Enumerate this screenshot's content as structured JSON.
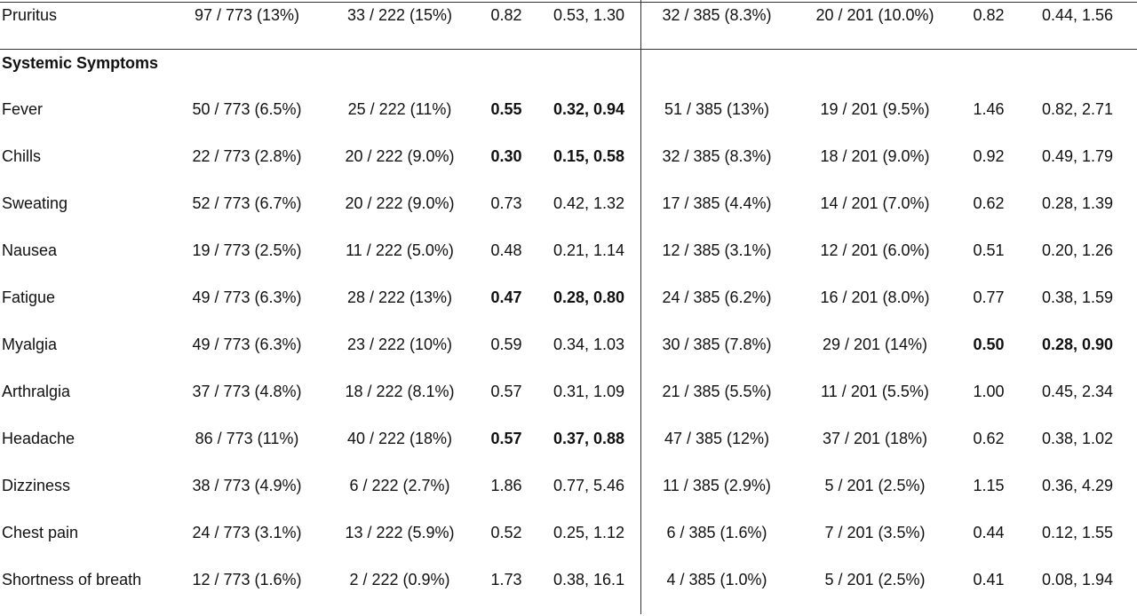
{
  "table": {
    "rows": [
      {
        "cells": [
          "Pruritus",
          "97 / 773 (13%)",
          "33 / 222 (15%)",
          "0.82",
          "0.53, 1.30",
          "32 / 385 (8.3%)",
          "20 / 201 (10.0%)",
          "0.82",
          "0.44, 1.56"
        ]
      },
      {
        "section": "Systemic Symptoms"
      },
      {
        "cells": [
          "Fever",
          "50 / 773 (6.5%)",
          "25 / 222 (11%)",
          "0.55",
          "0.32, 0.94",
          "51 / 385 (13%)",
          "19 / 201 (9.5%)",
          "1.46",
          "0.82, 2.71"
        ],
        "bold": [
          3,
          4
        ]
      },
      {
        "cells": [
          "Chills",
          "22 / 773 (2.8%)",
          "20 / 222 (9.0%)",
          "0.30",
          "0.15, 0.58",
          "32 / 385 (8.3%)",
          "18 / 201 (9.0%)",
          "0.92",
          "0.49, 1.79"
        ],
        "bold": [
          3,
          4
        ]
      },
      {
        "cells": [
          "Sweating",
          "52 / 773 (6.7%)",
          "20 / 222 (9.0%)",
          "0.73",
          "0.42, 1.32",
          "17 / 385 (4.4%)",
          "14 / 201 (7.0%)",
          "0.62",
          "0.28, 1.39"
        ]
      },
      {
        "cells": [
          "Nausea",
          "19 / 773 (2.5%)",
          "11 / 222 (5.0%)",
          "0.48",
          "0.21, 1.14",
          "12 / 385 (3.1%)",
          "12 / 201 (6.0%)",
          "0.51",
          "0.20, 1.26"
        ]
      },
      {
        "cells": [
          "Fatigue",
          "49 / 773 (6.3%)",
          "28 / 222 (13%)",
          "0.47",
          "0.28, 0.80",
          "24 / 385 (6.2%)",
          "16 / 201 (8.0%)",
          "0.77",
          "0.38, 1.59"
        ],
        "bold": [
          3,
          4
        ]
      },
      {
        "cells": [
          "Myalgia",
          "49 / 773 (6.3%)",
          "23 / 222 (10%)",
          "0.59",
          "0.34, 1.03",
          "30 / 385 (7.8%)",
          "29 / 201 (14%)",
          "0.50",
          "0.28, 0.90"
        ],
        "bold": [
          7,
          8
        ]
      },
      {
        "cells": [
          "Arthralgia",
          "37 / 773 (4.8%)",
          "18 / 222 (8.1%)",
          "0.57",
          "0.31, 1.09",
          "21 / 385 (5.5%)",
          "11 / 201 (5.5%)",
          "1.00",
          "0.45, 2.34"
        ]
      },
      {
        "cells": [
          "Headache",
          "86 / 773 (11%)",
          "40 / 222 (18%)",
          "0.57",
          "0.37, 0.88",
          "47 / 385 (12%)",
          "37 / 201 (18%)",
          "0.62",
          "0.38, 1.02"
        ],
        "bold": [
          3,
          4
        ]
      },
      {
        "cells": [
          "Dizziness",
          "38 / 773 (4.9%)",
          "6 / 222 (2.7%)",
          "1.86",
          "0.77, 5.46",
          "11 / 385 (2.9%)",
          "5 / 201 (2.5%)",
          "1.15",
          "0.36, 4.29"
        ]
      },
      {
        "cells": [
          "Chest pain",
          "24 / 773 (3.1%)",
          "13 / 222 (5.9%)",
          "0.52",
          "0.25, 1.12",
          "6 / 385 (1.6%)",
          "7 / 201 (3.5%)",
          "0.44",
          "0.12, 1.55"
        ]
      },
      {
        "cells": [
          "Shortness of breath",
          "12 / 773 (1.6%)",
          "2 / 222 (0.9%)",
          "1.73",
          "0.38, 16.1",
          "4 / 385 (1.0%)",
          "5 / 201 (2.5%)",
          "0.41",
          "0.08, 1.94"
        ]
      }
    ]
  }
}
